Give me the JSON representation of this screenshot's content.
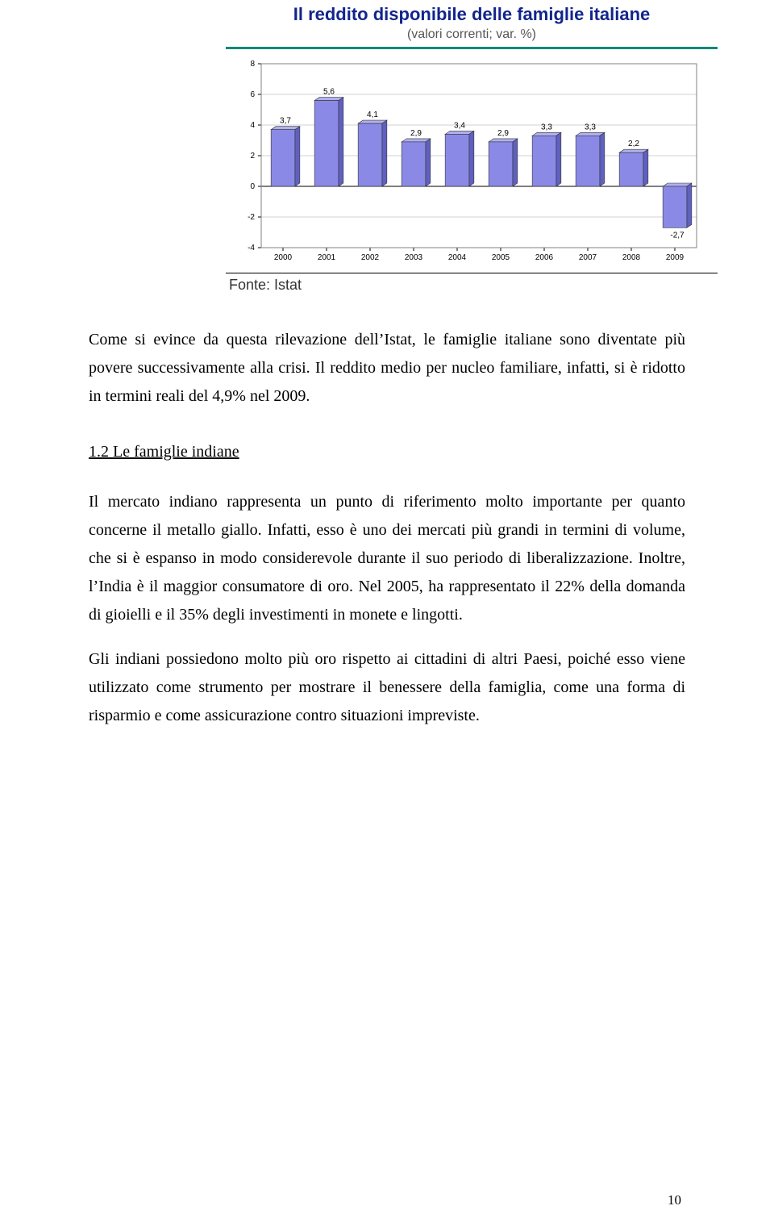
{
  "chart": {
    "type": "bar",
    "title": "Il reddito disponibile delle famiglie italiane",
    "subtitle": "(valori correnti; var. %)",
    "source": "Fonte: Istat",
    "rule_color": "#0b8a7a",
    "plot_border_color": "#808080",
    "grid_color": "#c0c0c0",
    "bar_fill": "#8a8ae6",
    "bar_side": "#6060c0",
    "bar_top": "#b0b0f0",
    "axis_font": "Arial",
    "axis_fontsize": 10,
    "label_fontsize": 10,
    "ylim": [
      -4,
      8
    ],
    "ytick_step": 2,
    "categories": [
      "2000",
      "2001",
      "2002",
      "2003",
      "2004",
      "2005",
      "2006",
      "2007",
      "2008",
      "2009"
    ],
    "values": [
      3.7,
      5.6,
      4.1,
      2.9,
      3.4,
      2.9,
      3.3,
      3.3,
      2.2,
      -2.7
    ],
    "value_labels": [
      "3,7",
      "5,6",
      "4,1",
      "2,9",
      "3,4",
      "2,9",
      "3,3",
      "3,3",
      "2,2",
      "-2,7"
    ],
    "bar_width": 0.55,
    "depth_dx": 6,
    "depth_dy": -4
  },
  "text": {
    "p1": "Come si evince da questa rilevazione dell’Istat, le famiglie italiane sono diventate più povere successivamente alla crisi. Il reddito medio per nucleo familiare, infatti, si è ridotto in termini reali del 4,9% nel 2009.",
    "heading": "1.2 Le famiglie indiane",
    "p2": "Il mercato indiano rappresenta un punto di riferimento molto importante per quanto concerne il metallo giallo. Infatti, esso è uno dei mercati più grandi in termini di volume, che si è espanso in modo considerevole durante il suo periodo di liberalizzazione. Inoltre, l’India è il maggior consumatore di oro. Nel 2005, ha rappresentato il 22% della domanda di gioielli e il 35% degli investimenti in monete e lingotti.",
    "p3": "Gli indiani possiedono molto più oro rispetto ai cittadini di altri Paesi, poiché esso viene utilizzato come strumento per mostrare il benessere della famiglia, come una forma di risparmio e come assicurazione contro situazioni impreviste."
  },
  "page_number": "10"
}
